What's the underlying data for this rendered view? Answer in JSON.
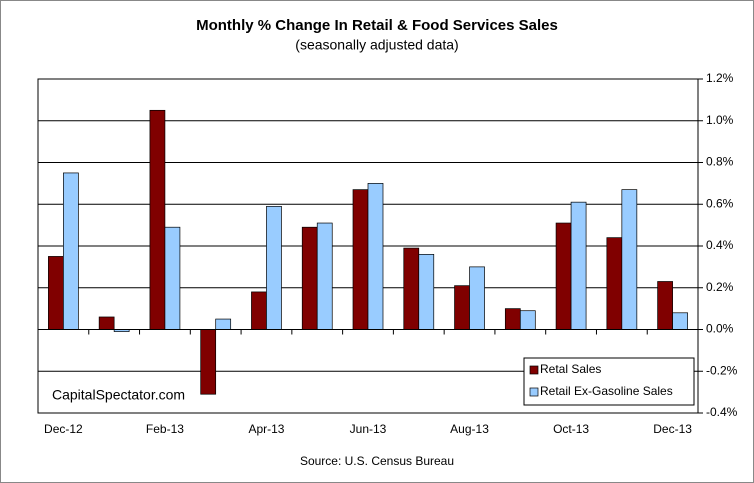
{
  "chart_data": {
    "type": "bar",
    "title": "Monthly % Change In Retail & Food Services Sales",
    "subtitle": "(seasonally adjusted data)",
    "annotation": "CapitalSpectator.com",
    "source": "Source: U.S. Census Bureau",
    "categories": [
      "Dec-12",
      null,
      "Feb-13",
      null,
      "Apr-13",
      null,
      "Jun-13",
      null,
      "Aug-13",
      null,
      "Oct-13",
      null,
      "Dec-13"
    ],
    "series": [
      {
        "name": "Retal Sales",
        "color": "#800000",
        "values": [
          0.35,
          0.06,
          1.05,
          -0.31,
          0.18,
          0.49,
          0.67,
          0.39,
          0.21,
          0.1,
          0.51,
          0.44,
          0.23
        ]
      },
      {
        "name": "Retail Ex-Gasoline Sales",
        "color": "#99ccff",
        "values": [
          0.75,
          -0.01,
          0.49,
          0.05,
          0.59,
          0.51,
          0.7,
          0.36,
          0.3,
          0.09,
          0.61,
          0.67,
          0.08
        ]
      }
    ],
    "ylim": [
      -0.4,
      1.2
    ],
    "yticks": [
      {
        "value": -0.4,
        "label": "-0.4%"
      },
      {
        "value": -0.2,
        "label": "-0.2%"
      },
      {
        "value": 0,
        "label": "0.0%"
      },
      {
        "value": 0.2,
        "label": "0.2%"
      },
      {
        "value": 0.4,
        "label": "0.4%"
      },
      {
        "value": 0.6,
        "label": "0.6%"
      },
      {
        "value": 0.8,
        "label": "0.8%"
      },
      {
        "value": 1.0,
        "label": "1.0%"
      },
      {
        "value": 1.2,
        "label": "1.2%"
      }
    ],
    "grid": true,
    "legend": "lower right"
  }
}
